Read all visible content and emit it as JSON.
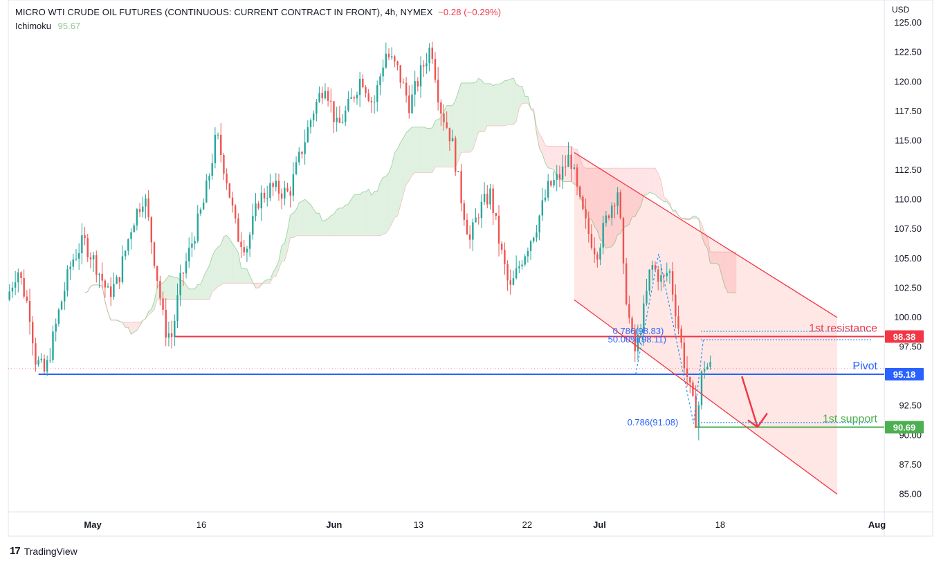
{
  "header": {
    "symbol_line": "MICRO WTI CRUDE OIL FUTURES (CONTINUOUS: CURRENT CONTRACT IN FRONT), 4h, NYMEX",
    "change": "−0.28 (−0.29%)",
    "indicator_name": "Ichimoku",
    "indicator_value": "95.67"
  },
  "currency": "USD",
  "footer": {
    "brand": "TradingView",
    "logo": "tradingview-logo-icon"
  },
  "colors": {
    "up": "#26a69a",
    "down": "#ef5350",
    "resistance": "#f23645",
    "pivot": "#2962ff",
    "support": "#4caf50",
    "cloud_bull": "#c8e6c9",
    "cloud_bear": "#ffcdd2",
    "channel": "#f23645",
    "fib": "#2196f3"
  },
  "chart_data": {
    "type": "candlestick",
    "title": "MICRO WTI CRUDE OIL FUTURES (CONTINUOUS: CURRENT CONTRACT IN FRONT), 4h, NYMEX",
    "timeframe": "4h",
    "ylim": [
      83.5,
      125.3
    ],
    "y_ticks": [
      "85.00",
      "87.50",
      "90.00",
      "92.50",
      "95.00",
      "97.50",
      "100.00",
      "102.50",
      "105.00",
      "107.50",
      "110.00",
      "112.50",
      "115.00",
      "117.50",
      "120.00",
      "122.50",
      "125.00"
    ],
    "x_ticks": [
      {
        "label": "May",
        "day": 7
      },
      {
        "label": "16",
        "day": 16
      },
      {
        "label": "Jun",
        "day": 27
      },
      {
        "label": "13",
        "day": 34
      },
      {
        "label": "22",
        "day": 43
      },
      {
        "label": "Jul",
        "day": 49
      },
      {
        "label": "18",
        "day": 59
      },
      {
        "label": "Aug",
        "day": 72
      }
    ],
    "xlim_days": [
      0,
      72.6
    ],
    "price_path": [
      [
        0.1,
        101.5
      ],
      [
        1,
        104.2
      ],
      [
        2,
        100.5
      ],
      [
        2.5,
        96.5
      ],
      [
        3.3,
        95.2
      ],
      [
        4.5,
        100.8
      ],
      [
        5.5,
        104.8
      ],
      [
        6.5,
        106.5
      ],
      [
        7.5,
        104.5
      ],
      [
        8.5,
        102
      ],
      [
        9.3,
        103
      ],
      [
        10.5,
        108
      ],
      [
        11.5,
        110.5
      ],
      [
        12.5,
        104
      ],
      [
        13.2,
        99
      ],
      [
        13.8,
        98.4
      ],
      [
        14.5,
        103
      ],
      [
        15.5,
        106.5
      ],
      [
        16.5,
        110
      ],
      [
        17.5,
        115.5
      ],
      [
        18.3,
        112
      ],
      [
        19.2,
        107
      ],
      [
        20,
        106
      ],
      [
        21,
        110
      ],
      [
        22,
        111
      ],
      [
        23.5,
        110.5
      ],
      [
        24.5,
        114
      ],
      [
        25.5,
        117.5
      ],
      [
        26.5,
        120
      ],
      [
        27.5,
        116
      ],
      [
        28.5,
        118
      ],
      [
        29.5,
        120.5
      ],
      [
        30.5,
        118
      ],
      [
        31.5,
        122.5
      ],
      [
        32.5,
        121
      ],
      [
        33.5,
        118
      ],
      [
        34.5,
        121
      ],
      [
        35.3,
        123.2
      ],
      [
        36,
        118
      ],
      [
        37,
        115
      ],
      [
        37.8,
        110
      ],
      [
        38.5,
        106.5
      ],
      [
        39.2,
        109
      ],
      [
        40.2,
        110.5
      ],
      [
        41,
        106
      ],
      [
        41.8,
        102.2
      ],
      [
        42.8,
        105
      ],
      [
        44,
        107.8
      ],
      [
        45,
        111
      ],
      [
        46,
        112
      ],
      [
        46.8,
        113.8
      ],
      [
        47.5,
        110
      ],
      [
        48.2,
        107.5
      ],
      [
        49,
        105.5
      ],
      [
        50,
        109
      ],
      [
        50.8,
        111
      ],
      [
        51.2,
        104
      ],
      [
        51.8,
        99
      ],
      [
        52.2,
        97
      ],
      [
        53,
        101
      ],
      [
        53.5,
        104.5
      ],
      [
        54.5,
        103
      ],
      [
        55,
        104.2
      ],
      [
        55.5,
        101
      ],
      [
        56.2,
        96.5
      ],
      [
        56.8,
        93.5
      ],
      [
        57.3,
        91
      ],
      [
        57.8,
        96
      ],
      [
        58.3,
        95.8
      ]
    ],
    "ichimoku_value": 95.67,
    "levels": [
      {
        "label": "1st resistance",
        "value": 98.38,
        "value_label": "98.38",
        "start_day": 13.8
      },
      {
        "label": "Pivot",
        "value": 95.18,
        "value_label": "95.18",
        "start_day": 2.5
      },
      {
        "label": "1st support",
        "value": 90.69,
        "value_label": "90.69",
        "start_day": 56.9
      }
    ],
    "fib_labels": [
      {
        "text": "0.786(98.83)",
        "value": 98.83,
        "label_day": 50.1,
        "line_from_day": 57.4,
        "line_to_day": 71.6
      },
      {
        "text": "50.00%(98.11)",
        "value": 98.11,
        "label_day": 49.7,
        "line_from_day": 57.4,
        "line_to_day": 71.6
      },
      {
        "text": "0.786(91.08)",
        "value": 91.08,
        "label_day": 51.3,
        "line_from_day": 57.4,
        "line_to_day": 71.6
      }
    ],
    "channel": {
      "upper": [
        [
          46.9,
          114.0
        ],
        [
          68.7,
          100.0
        ]
      ],
      "lower": [
        [
          46.9,
          101.5
        ],
        [
          68.7,
          85.0
        ]
      ]
    },
    "arrow": {
      "from": [
        60.8,
        95.0
      ],
      "to": [
        62.1,
        90.7
      ]
    }
  }
}
